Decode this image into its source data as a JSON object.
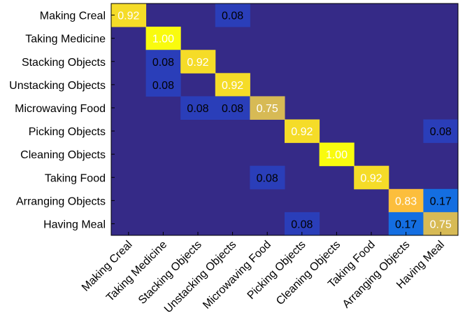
{
  "chart_data": {
    "type": "heatmap",
    "title": "",
    "xlabel": "",
    "ylabel": "",
    "row_labels": [
      "Making Creal",
      "Taking Medicine",
      "Stacking Objects",
      "Unstacking Objects",
      "Microwaving Food",
      "Picking Objects",
      "Cleaning Objects",
      "Taking Food",
      "Arranging Objects",
      "Having Meal"
    ],
    "col_labels": [
      "Making Creal",
      "Taking Medicine",
      "Stacking Objects",
      "Unstacking Objects",
      "Microwaving Food",
      "Picking Objects",
      "Cleaning Objects",
      "Taking Food",
      "Arranging Objects",
      "Having Meal"
    ],
    "values": [
      [
        0.92,
        0,
        0,
        0.08,
        0,
        0,
        0,
        0,
        0,
        0
      ],
      [
        0,
        1.0,
        0,
        0,
        0,
        0,
        0,
        0,
        0,
        0
      ],
      [
        0,
        0.08,
        0.92,
        0,
        0,
        0,
        0,
        0,
        0,
        0
      ],
      [
        0,
        0.08,
        0,
        0.92,
        0,
        0,
        0,
        0,
        0,
        0
      ],
      [
        0,
        0,
        0.08,
        0.08,
        0.75,
        0,
        0,
        0,
        0,
        0
      ],
      [
        0,
        0,
        0,
        0,
        0,
        0.92,
        0,
        0,
        0,
        0.08
      ],
      [
        0,
        0,
        0,
        0,
        0,
        0,
        1.0,
        0,
        0,
        0
      ],
      [
        0,
        0,
        0,
        0,
        0.08,
        0,
        0,
        0.92,
        0,
        0
      ],
      [
        0,
        0,
        0,
        0,
        0,
        0,
        0,
        0,
        0.83,
        0.17
      ],
      [
        0,
        0,
        0,
        0,
        0,
        0.08,
        0,
        0,
        0.17,
        0.75
      ]
    ],
    "value_labels": [
      [
        "0.92",
        "",
        "",
        "0.08",
        "",
        "",
        "",
        "",
        "",
        ""
      ],
      [
        "",
        "1.00",
        "",
        "",
        "",
        "",
        "",
        "",
        "",
        ""
      ],
      [
        "",
        "0.08",
        "0.92",
        "",
        "",
        "",
        "",
        "",
        "",
        ""
      ],
      [
        "",
        "0.08",
        "",
        "0.92",
        "",
        "",
        "",
        "",
        "",
        ""
      ],
      [
        "",
        "",
        "0.08",
        "0.08",
        "0.75",
        "",
        "",
        "",
        "",
        ""
      ],
      [
        "",
        "",
        "",
        "",
        "",
        "0.92",
        "",
        "",
        "",
        "0.08"
      ],
      [
        "",
        "",
        "",
        "",
        "",
        "",
        "1.00",
        "",
        "",
        ""
      ],
      [
        "",
        "",
        "",
        "",
        "0.08",
        "",
        "",
        "0.92",
        "",
        ""
      ],
      [
        "",
        "",
        "",
        "",
        "",
        "",
        "",
        "",
        "0.83",
        "0.17"
      ],
      [
        "",
        "",
        "",
        "",
        "",
        "0.08",
        "",
        "",
        "0.17",
        "0.75"
      ]
    ],
    "colormap": "parula",
    "background_color": "#352a87",
    "grid": false,
    "legend": "none"
  }
}
